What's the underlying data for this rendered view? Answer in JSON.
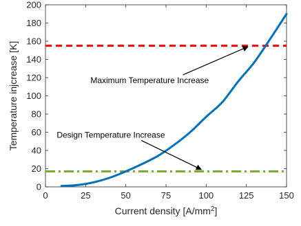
{
  "chart_data": {
    "type": "line",
    "xlabel": "Current density [A/mm",
    "xlabel_sup": "2",
    "xlabel_end": "]",
    "ylabel": "Temperature injcrease [K]",
    "xlim": [
      0,
      150
    ],
    "ylim": [
      0,
      200
    ],
    "x_ticks": [
      0,
      25,
      50,
      75,
      100,
      125,
      150
    ],
    "y_ticks": [
      0,
      20,
      40,
      60,
      80,
      100,
      120,
      140,
      160,
      180,
      200
    ],
    "grid": false,
    "colors": {
      "curve": "#0072BD",
      "max_line": "#FF0000",
      "design_line": "#77AC30",
      "axis": "#262626"
    },
    "series": [
      {
        "x": [
          10,
          20,
          30,
          40,
          50,
          60,
          70,
          80,
          90,
          100,
          110,
          120,
          130,
          140,
          150
        ],
        "values": [
          1,
          2,
          5,
          10,
          17,
          25,
          34,
          46,
          60,
          77,
          93,
          116,
          137,
          163,
          190
        ]
      }
    ],
    "hlines": [
      {
        "y": 155,
        "style": "dashed",
        "color_key": "max_line"
      },
      {
        "y": 17,
        "style": "dashdot",
        "color_key": "design_line"
      }
    ],
    "annotations": [
      {
        "text": "Maximum Temperature Increase",
        "text_x": 28,
        "text_y": 117,
        "arrow_to_x": 126,
        "arrow_to_y": 154
      },
      {
        "text": "Design Temperature Increase",
        "text_x": 7,
        "text_y": 57,
        "arrow_to_x": 97,
        "arrow_to_y": 19
      }
    ]
  }
}
